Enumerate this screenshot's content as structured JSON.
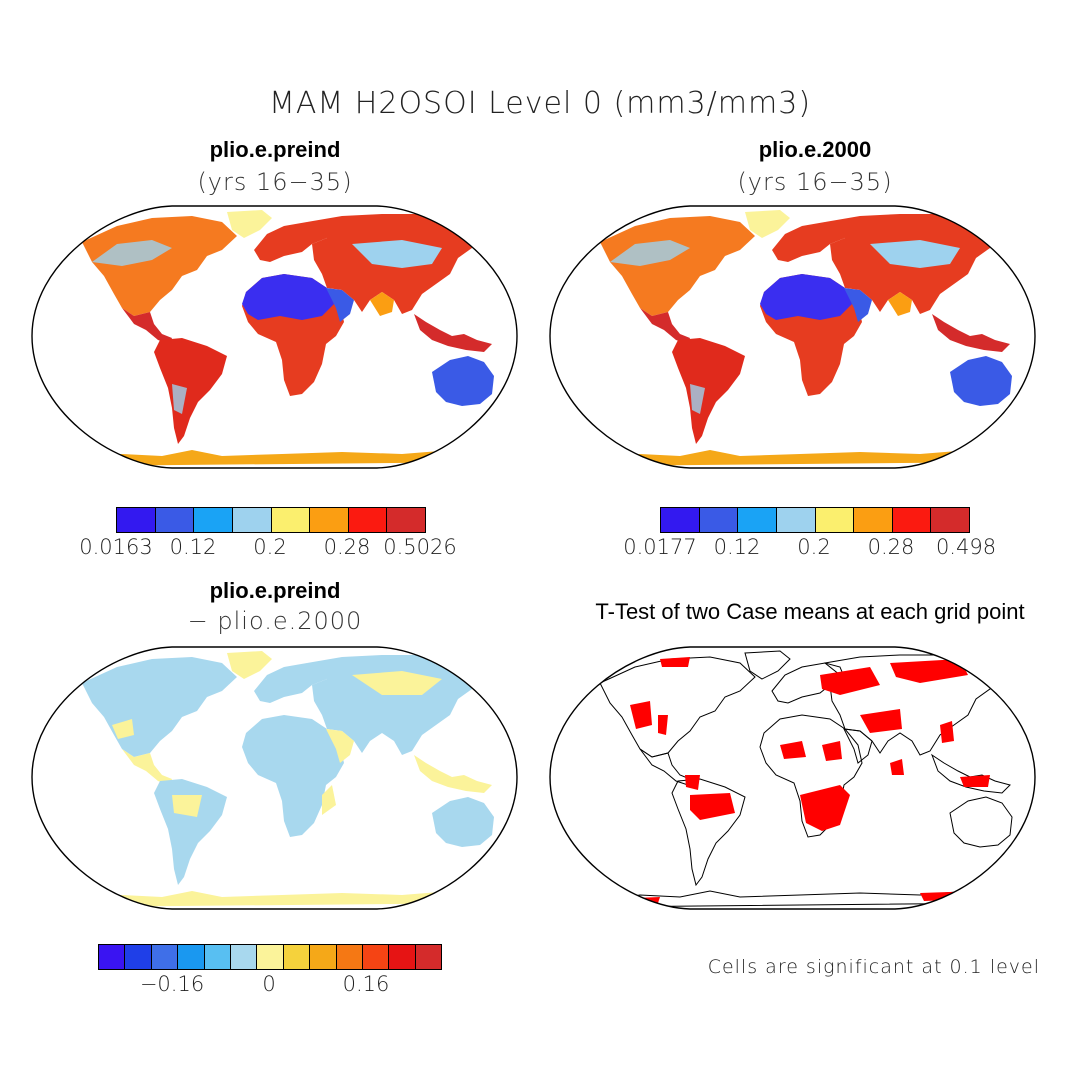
{
  "figure": {
    "title": "MAM H2OSOI Level 0 (mm3/mm3)"
  },
  "panels": {
    "top_left": {
      "title": "plio.e.preind",
      "subtitle": "(yrs 16−35)",
      "colorbar": {
        "colors": [
          "#3319f0",
          "#3a5ae6",
          "#1aa3f5",
          "#9ed2ee",
          "#fbef6e",
          "#fb9e12",
          "#fb1a10",
          "#d42b2b"
        ],
        "labels": [
          "0.0163",
          "0.12",
          "0.2",
          "0.28",
          "0.5026"
        ]
      }
    },
    "top_right": {
      "title": "plio.e.2000",
      "subtitle": "(yrs 16−35)",
      "colorbar": {
        "colors": [
          "#3319f0",
          "#3a5ae6",
          "#1aa3f5",
          "#9ed2ee",
          "#fbef6e",
          "#fb9e12",
          "#fb1a10",
          "#d42b2b"
        ],
        "labels": [
          "0.0177",
          "0.12",
          "0.2",
          "0.28",
          "0.498"
        ]
      }
    },
    "bottom_left": {
      "title": "plio.e.preind",
      "subtitle": "− plio.e.2000",
      "colorbar": {
        "colors": [
          "#3a14f2",
          "#1f3fe8",
          "#3f6fe8",
          "#1a98f0",
          "#58bff2",
          "#a8d8ee",
          "#fbf39a",
          "#f5d23c",
          "#f5a818",
          "#f57814",
          "#f54414",
          "#e61414",
          "#d42b2b"
        ],
        "labels": [
          "−0.16",
          "0",
          "0.16"
        ]
      }
    },
    "bottom_right": {
      "title": "T-Test of two Case means at each grid point",
      "footnote": "Cells are significant at 0.1 level",
      "significant_color": "#ff0000"
    }
  },
  "map_fills": {
    "top": {
      "north_america": "#f57a20",
      "greenland": "#fbf39a",
      "south_america": "#e02a1c",
      "sahara": "#3a3af0",
      "africa_south": "#f57a20",
      "europe_asia": "#e63c20",
      "arabia": "#3a5ae6",
      "central_asia": "#9ed2ee",
      "india": "#fb9e12",
      "se_asia": "#d42b2b",
      "australia": "#3a5ae6",
      "antarctica": "#f5a818"
    },
    "diff": {
      "land": "#a8d8ee",
      "yellow": "#fbf39a"
    }
  }
}
